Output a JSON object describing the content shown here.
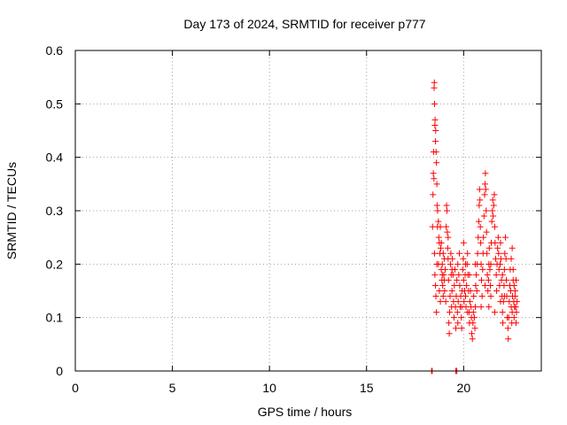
{
  "chart_data": {
    "type": "scatter",
    "title": "Day 173 of 2024, SRMTID for receiver p777",
    "xlabel": "GPS time / hours",
    "ylabel": "SRMTID / TECUs",
    "xlim": [
      0,
      24
    ],
    "ylim": [
      0,
      0.6
    ],
    "xticks": [
      0,
      5,
      10,
      15,
      20
    ],
    "xtick_labels": [
      "0",
      "5",
      "10",
      "15",
      "20"
    ],
    "yticks": [
      0,
      0.1,
      0.2,
      0.3,
      0.4,
      0.5,
      0.6
    ],
    "ytick_labels": [
      "0",
      "0.1",
      "0.2",
      "0.3",
      "0.4",
      "0.5",
      "0.6"
    ],
    "grid": true,
    "marker": "plus",
    "color": "#ff0000",
    "series": [
      {
        "name": "SRMTID",
        "points": [
          [
            18.35,
            0.0
          ],
          [
            18.38,
            0.0
          ],
          [
            19.6,
            0.0
          ],
          [
            19.65,
            0.0
          ],
          [
            18.4,
            0.27
          ],
          [
            18.42,
            0.33
          ],
          [
            18.44,
            0.37
          ],
          [
            18.45,
            0.41
          ],
          [
            18.47,
            0.36
          ],
          [
            18.48,
            0.53
          ],
          [
            18.49,
            0.54
          ],
          [
            18.5,
            0.5
          ],
          [
            18.52,
            0.46
          ],
          [
            18.53,
            0.47
          ],
          [
            18.55,
            0.43
          ],
          [
            18.56,
            0.45
          ],
          [
            18.58,
            0.41
          ],
          [
            18.6,
            0.39
          ],
          [
            18.62,
            0.35
          ],
          [
            18.63,
            0.31
          ],
          [
            18.65,
            0.27
          ],
          [
            18.66,
            0.3
          ],
          [
            18.5,
            0.22
          ],
          [
            18.52,
            0.18
          ],
          [
            18.55,
            0.16
          ],
          [
            18.57,
            0.14
          ],
          [
            18.6,
            0.11
          ],
          [
            18.62,
            0.2
          ],
          [
            18.7,
            0.28
          ],
          [
            18.72,
            0.25
          ],
          [
            18.75,
            0.24
          ],
          [
            18.78,
            0.22
          ],
          [
            18.8,
            0.27
          ],
          [
            18.82,
            0.23
          ],
          [
            18.85,
            0.19
          ],
          [
            18.88,
            0.17
          ],
          [
            18.9,
            0.2
          ],
          [
            18.92,
            0.16
          ],
          [
            18.95,
            0.22
          ],
          [
            18.98,
            0.18
          ],
          [
            19.0,
            0.21
          ],
          [
            19.02,
            0.15
          ],
          [
            19.05,
            0.19
          ],
          [
            19.08,
            0.13
          ],
          [
            19.1,
            0.27
          ],
          [
            19.12,
            0.31
          ],
          [
            19.14,
            0.3
          ],
          [
            19.16,
            0.26
          ],
          [
            19.18,
            0.23
          ],
          [
            19.2,
            0.21
          ],
          [
            19.22,
            0.17
          ],
          [
            19.24,
            0.09
          ],
          [
            19.26,
            0.07
          ],
          [
            19.28,
            0.11
          ],
          [
            19.3,
            0.14
          ],
          [
            19.32,
            0.2
          ],
          [
            19.34,
            0.22
          ],
          [
            19.36,
            0.18
          ],
          [
            19.38,
            0.12
          ],
          [
            19.4,
            0.15
          ],
          [
            19.42,
            0.21
          ],
          [
            19.45,
            0.18
          ],
          [
            19.48,
            0.13
          ],
          [
            19.5,
            0.1
          ],
          [
            19.52,
            0.16
          ],
          [
            19.55,
            0.19
          ],
          [
            19.58,
            0.12
          ],
          [
            19.6,
            0.08
          ],
          [
            19.62,
            0.14
          ],
          [
            19.65,
            0.17
          ],
          [
            19.68,
            0.11
          ],
          [
            19.7,
            0.09
          ],
          [
            19.72,
            0.13
          ],
          [
            19.75,
            0.18
          ],
          [
            19.78,
            0.22
          ],
          [
            19.8,
            0.16
          ],
          [
            19.82,
            0.12
          ],
          [
            19.85,
            0.14
          ],
          [
            19.88,
            0.1
          ],
          [
            19.9,
            0.08
          ],
          [
            19.92,
            0.15
          ],
          [
            19.95,
            0.19
          ],
          [
            19.98,
            0.21
          ],
          [
            20.0,
            0.17
          ],
          [
            20.02,
            0.13
          ],
          [
            20.05,
            0.15
          ],
          [
            20.08,
            0.18
          ],
          [
            20.1,
            0.14
          ],
          [
            20.12,
            0.12
          ],
          [
            20.15,
            0.16
          ],
          [
            20.18,
            0.2
          ],
          [
            20.2,
            0.22
          ],
          [
            20.22,
            0.18
          ],
          [
            20.25,
            0.15
          ],
          [
            20.28,
            0.11
          ],
          [
            20.3,
            0.09
          ],
          [
            20.32,
            0.13
          ],
          [
            20.35,
            0.15
          ],
          [
            20.38,
            0.12
          ],
          [
            20.4,
            0.1
          ],
          [
            20.42,
            0.07
          ],
          [
            20.45,
            0.06
          ],
          [
            20.48,
            0.09
          ],
          [
            20.5,
            0.11
          ],
          [
            20.52,
            0.14
          ],
          [
            20.55,
            0.1
          ],
          [
            20.58,
            0.08
          ],
          [
            20.6,
            0.12
          ],
          [
            20.62,
            0.16
          ],
          [
            20.65,
            0.18
          ],
          [
            20.68,
            0.15
          ],
          [
            20.7,
            0.2
          ],
          [
            20.72,
            0.22
          ],
          [
            20.75,
            0.25
          ],
          [
            20.78,
            0.28
          ],
          [
            20.8,
            0.31
          ],
          [
            20.82,
            0.34
          ],
          [
            20.84,
            0.32
          ],
          [
            20.86,
            0.27
          ],
          [
            20.88,
            0.24
          ],
          [
            20.9,
            0.2
          ],
          [
            20.92,
            0.17
          ],
          [
            20.95,
            0.14
          ],
          [
            20.98,
            0.19
          ],
          [
            21.0,
            0.22
          ],
          [
            21.02,
            0.25
          ],
          [
            21.05,
            0.29
          ],
          [
            21.08,
            0.33
          ],
          [
            21.1,
            0.35
          ],
          [
            21.12,
            0.37
          ],
          [
            21.14,
            0.34
          ],
          [
            21.16,
            0.3
          ],
          [
            21.18,
            0.26
          ],
          [
            21.2,
            0.22
          ],
          [
            21.22,
            0.18
          ],
          [
            21.25,
            0.15
          ],
          [
            21.28,
            0.17
          ],
          [
            21.3,
            0.2
          ],
          [
            21.32,
            0.23
          ],
          [
            21.35,
            0.19
          ],
          [
            21.38,
            0.16
          ],
          [
            21.4,
            0.2
          ],
          [
            21.42,
            0.24
          ],
          [
            21.45,
            0.28
          ],
          [
            21.48,
            0.3
          ],
          [
            21.5,
            0.32
          ],
          [
            21.52,
            0.29
          ],
          [
            21.55,
            0.31
          ],
          [
            21.58,
            0.33
          ],
          [
            21.6,
            0.27
          ],
          [
            21.62,
            0.24
          ],
          [
            21.65,
            0.21
          ],
          [
            21.68,
            0.18
          ],
          [
            21.7,
            0.15
          ],
          [
            21.72,
            0.2
          ],
          [
            21.75,
            0.23
          ],
          [
            21.78,
            0.25
          ],
          [
            21.8,
            0.22
          ],
          [
            21.82,
            0.19
          ],
          [
            21.85,
            0.16
          ],
          [
            21.88,
            0.2
          ],
          [
            21.9,
            0.24
          ],
          [
            21.92,
            0.21
          ],
          [
            21.95,
            0.17
          ],
          [
            21.98,
            0.14
          ],
          [
            22.0,
            0.11
          ],
          [
            22.02,
            0.09
          ],
          [
            22.05,
            0.13
          ],
          [
            22.08,
            0.16
          ],
          [
            22.1,
            0.19
          ],
          [
            22.12,
            0.22
          ],
          [
            22.15,
            0.25
          ],
          [
            22.18,
            0.21
          ],
          [
            22.2,
            0.17
          ],
          [
            22.22,
            0.14
          ],
          [
            22.25,
            0.1
          ],
          [
            22.28,
            0.08
          ],
          [
            22.3,
            0.06
          ],
          [
            22.32,
            0.1
          ],
          [
            22.35,
            0.13
          ],
          [
            22.38,
            0.16
          ],
          [
            22.4,
            0.19
          ],
          [
            22.42,
            0.15
          ],
          [
            22.45,
            0.12
          ],
          [
            22.48,
            0.09
          ],
          [
            22.5,
            0.11
          ],
          [
            22.52,
            0.14
          ],
          [
            22.55,
            0.17
          ],
          [
            22.58,
            0.13
          ],
          [
            22.6,
            0.1
          ],
          [
            22.62,
            0.12
          ],
          [
            22.65,
            0.15
          ],
          [
            22.68,
            0.12
          ],
          [
            22.7,
            0.09
          ],
          [
            22.72,
            0.11
          ],
          [
            22.75,
            0.13
          ],
          [
            22.45,
            0.21
          ],
          [
            22.5,
            0.23
          ],
          [
            22.55,
            0.19
          ],
          [
            22.6,
            0.16
          ],
          [
            22.65,
            0.14
          ],
          [
            22.7,
            0.17
          ],
          [
            21.3,
            0.12
          ],
          [
            21.4,
            0.14
          ],
          [
            21.6,
            0.11
          ],
          [
            21.9,
            0.13
          ],
          [
            22.0,
            0.18
          ],
          [
            22.1,
            0.14
          ],
          [
            20.0,
            0.24
          ],
          [
            20.1,
            0.2
          ],
          [
            20.3,
            0.18
          ],
          [
            20.6,
            0.2
          ],
          [
            20.9,
            0.12
          ],
          [
            21.1,
            0.16
          ],
          [
            19.0,
            0.17
          ],
          [
            19.2,
            0.25
          ],
          [
            19.4,
            0.19
          ],
          [
            19.7,
            0.2
          ],
          [
            19.9,
            0.12
          ],
          [
            20.2,
            0.11
          ],
          [
            18.7,
            0.2
          ],
          [
            18.75,
            0.15
          ],
          [
            18.8,
            0.13
          ],
          [
            18.85,
            0.24
          ],
          [
            18.9,
            0.18
          ],
          [
            18.95,
            0.14
          ]
        ]
      }
    ]
  }
}
